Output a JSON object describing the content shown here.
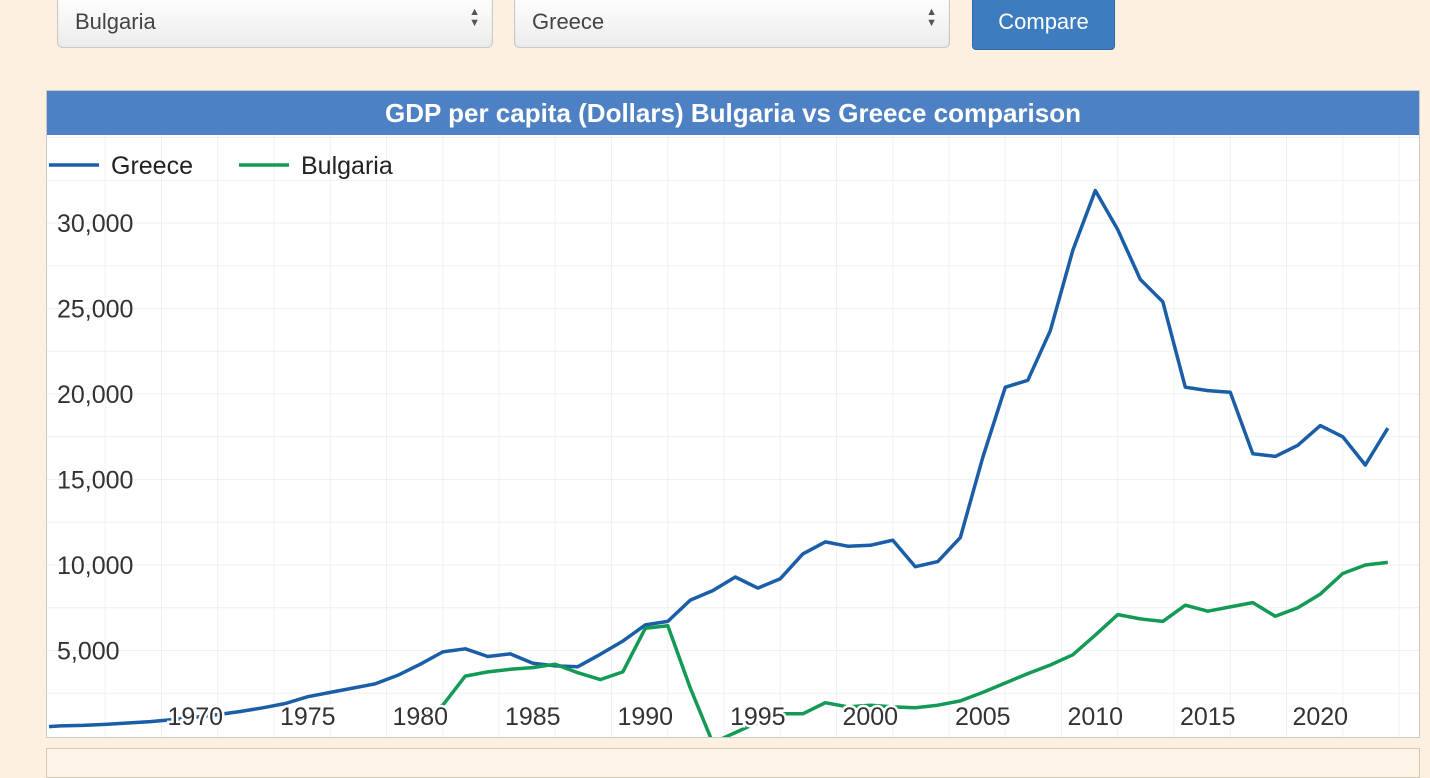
{
  "controls": {
    "country1": "Bulgaria",
    "country2": "Greece",
    "compare_label": "Compare"
  },
  "colors": {
    "greece": "#1a5ea8",
    "bulgaria": "#139a55",
    "title_bg": "#4e81c4"
  },
  "chart_data": {
    "type": "line",
    "title": "GDP per capita (Dollars) Bulgaria vs Greece comparison",
    "legend": [
      "Greece",
      "Bulgaria"
    ],
    "legend_position": "top-left",
    "grid": true,
    "xlim": [
      1963.5,
      2024.3
    ],
    "ylim": [
      0,
      35000
    ],
    "x_ticks": [
      1970,
      1975,
      1980,
      1985,
      1990,
      1995,
      2000,
      2005,
      2010,
      2015,
      2020
    ],
    "y_ticks": [
      5000,
      10000,
      15000,
      20000,
      25000,
      30000
    ],
    "y_tick_labels": [
      "5,000",
      "10,000",
      "15,000",
      "20,000",
      "25,000",
      "30,000"
    ],
    "series": [
      {
        "name": "Greece",
        "color": "#1a5ea8",
        "points": [
          [
            1963.5,
            550
          ],
          [
            1964,
            590
          ],
          [
            1965,
            620
          ],
          [
            1966,
            680
          ],
          [
            1967,
            760
          ],
          [
            1968,
            840
          ],
          [
            1969,
            960
          ],
          [
            1970,
            1100
          ],
          [
            1971,
            1250
          ],
          [
            1972,
            1430
          ],
          [
            1973,
            1650
          ],
          [
            1974,
            1900
          ],
          [
            1975,
            2300
          ],
          [
            1976,
            2550
          ],
          [
            1977,
            2800
          ],
          [
            1978,
            3050
          ],
          [
            1979,
            3550
          ],
          [
            1980,
            4200
          ],
          [
            1981,
            4920
          ],
          [
            1982,
            5100
          ],
          [
            1983,
            4650
          ],
          [
            1984,
            4800
          ],
          [
            1985,
            4250
          ],
          [
            1986,
            4100
          ],
          [
            1987,
            4050
          ],
          [
            1988,
            4780
          ],
          [
            1989,
            5550
          ],
          [
            1990,
            6500
          ],
          [
            1991,
            6700
          ],
          [
            1992,
            7950
          ],
          [
            1993,
            8500
          ],
          [
            1994,
            9300
          ],
          [
            1995,
            8650
          ],
          [
            1996,
            9200
          ],
          [
            1997,
            10650
          ],
          [
            1998,
            11350
          ],
          [
            1999,
            11100
          ],
          [
            2000,
            11150
          ],
          [
            2001,
            11450
          ],
          [
            2002,
            9900
          ],
          [
            2003,
            10200
          ],
          [
            2004,
            11600
          ],
          [
            2005,
            16300
          ],
          [
            2006,
            20400
          ],
          [
            2007,
            20800
          ],
          [
            2008,
            23700
          ],
          [
            2009,
            28400
          ],
          [
            2010,
            31900
          ],
          [
            2011,
            29600
          ],
          [
            2012,
            26700
          ],
          [
            2013,
            25400
          ],
          [
            2014,
            20400
          ],
          [
            2015,
            20200
          ],
          [
            2016,
            20100
          ],
          [
            2017,
            16500
          ],
          [
            2018,
            16350
          ],
          [
            2019,
            17000
          ],
          [
            2020,
            18150
          ],
          [
            2021,
            17500
          ],
          [
            2022,
            15850
          ],
          [
            2023,
            18000
          ]
        ]
      },
      {
        "name": "Bulgaria",
        "color": "#139a55",
        "points": [
          [
            1980,
            1100
          ],
          [
            1981,
            1800
          ],
          [
            1982,
            3500
          ],
          [
            1983,
            3750
          ],
          [
            1984,
            3900
          ],
          [
            1985,
            4000
          ],
          [
            1986,
            4200
          ],
          [
            1987,
            3700
          ],
          [
            1988,
            3300
          ],
          [
            1989,
            3750
          ],
          [
            1990,
            6300
          ],
          [
            1991,
            6450
          ],
          [
            1992,
            2800
          ],
          [
            1993,
            -400
          ],
          [
            1994,
            200
          ],
          [
            1995,
            800
          ],
          [
            1996,
            1300
          ],
          [
            1997,
            1300
          ],
          [
            1998,
            1950
          ],
          [
            1999,
            1700
          ],
          [
            2000,
            1800
          ],
          [
            2001,
            1700
          ],
          [
            2002,
            1650
          ],
          [
            2003,
            1800
          ],
          [
            2004,
            2050
          ],
          [
            2005,
            2550
          ],
          [
            2006,
            3100
          ],
          [
            2007,
            3650
          ],
          [
            2008,
            4150
          ],
          [
            2009,
            4750
          ],
          [
            2010,
            5900
          ],
          [
            2011,
            7100
          ],
          [
            2012,
            6850
          ],
          [
            2013,
            6700
          ],
          [
            2014,
            7650
          ],
          [
            2015,
            7300
          ],
          [
            2016,
            7550
          ],
          [
            2017,
            7800
          ],
          [
            2018,
            7000
          ],
          [
            2019,
            7500
          ],
          [
            2020,
            8300
          ],
          [
            2021,
            9500
          ],
          [
            2022,
            10000
          ],
          [
            2023,
            10150
          ]
        ]
      }
    ]
  }
}
